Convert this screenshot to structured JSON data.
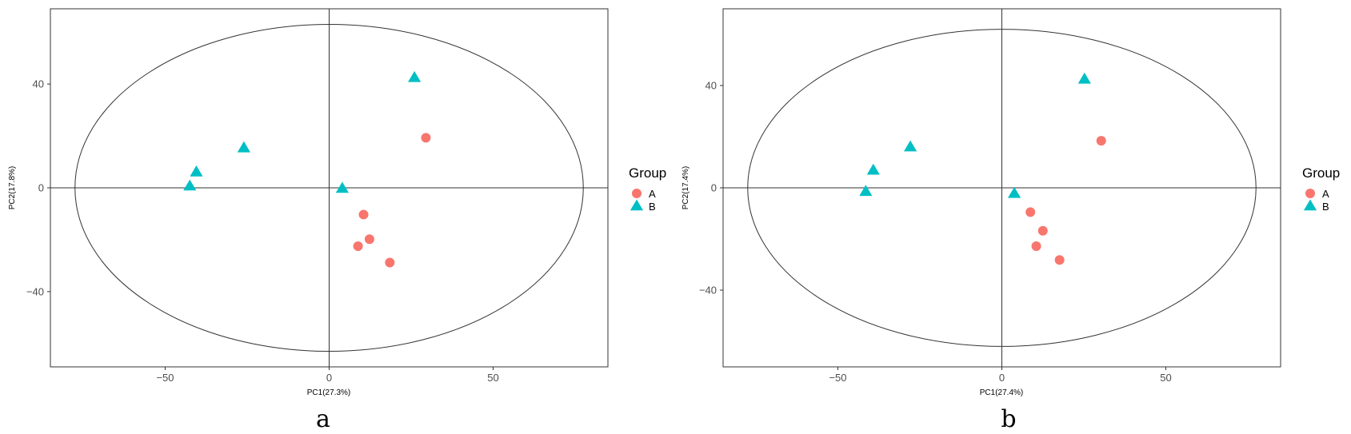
{
  "chart_data": [
    {
      "type": "scatter",
      "panel_label": "a",
      "xlabel": "PC1(27.3%)",
      "ylabel": "PC2(17.8%)",
      "xlim": [
        -85,
        85
      ],
      "ylim": [
        -69,
        69
      ],
      "xticks": [
        -50,
        0,
        50
      ],
      "yticks": [
        -40,
        0,
        40
      ],
      "grid": false,
      "reference_lines": {
        "x": 0,
        "y": 0
      },
      "ellipse": {
        "cx": 0,
        "cy": 0,
        "rx": 77.5,
        "ry": 63
      },
      "legend": {
        "title": "Group",
        "position": "right"
      },
      "series": [
        {
          "name": "A",
          "shape": "circle",
          "color": "#F8766D",
          "points": [
            [
              29.5,
              19.3
            ],
            [
              10.5,
              -10.3
            ],
            [
              12.3,
              -19.8
            ],
            [
              8.8,
              -22.5
            ],
            [
              18.5,
              -28.8
            ]
          ]
        },
        {
          "name": "B",
          "shape": "triangle",
          "color": "#00BFC4",
          "points": [
            [
              26,
              42.4
            ],
            [
              -26,
              15.3
            ],
            [
              -40.5,
              6
            ],
            [
              -42.5,
              0.6
            ],
            [
              4,
              -0.3
            ]
          ]
        }
      ]
    },
    {
      "type": "scatter",
      "panel_label": "b",
      "xlabel": "PC1(27.4%)",
      "ylabel": "PC2(17.4%)",
      "xlim": [
        -85,
        85
      ],
      "ylim": [
        -70,
        70
      ],
      "xticks": [
        -50,
        0,
        50
      ],
      "yticks": [
        -40,
        0,
        40
      ],
      "grid": false,
      "reference_lines": {
        "x": 0,
        "y": 0
      },
      "ellipse": {
        "cx": 0,
        "cy": 0,
        "rx": 77.5,
        "ry": 62
      },
      "legend": {
        "title": "Group",
        "position": "right"
      },
      "series": [
        {
          "name": "A",
          "shape": "circle",
          "color": "#F8766D",
          "points": [
            [
              30.3,
              18.4
            ],
            [
              8.7,
              -9.5
            ],
            [
              12.5,
              -16.8
            ],
            [
              10.5,
              -22.8
            ],
            [
              17.6,
              -28.2
            ]
          ]
        },
        {
          "name": "B",
          "shape": "triangle",
          "color": "#00BFC4",
          "points": [
            [
              25.2,
              42.4
            ],
            [
              -27.9,
              15.9
            ],
            [
              -39.2,
              6.8
            ],
            [
              -41.5,
              -1.5
            ],
            [
              3.8,
              -2.3
            ]
          ]
        }
      ]
    }
  ]
}
